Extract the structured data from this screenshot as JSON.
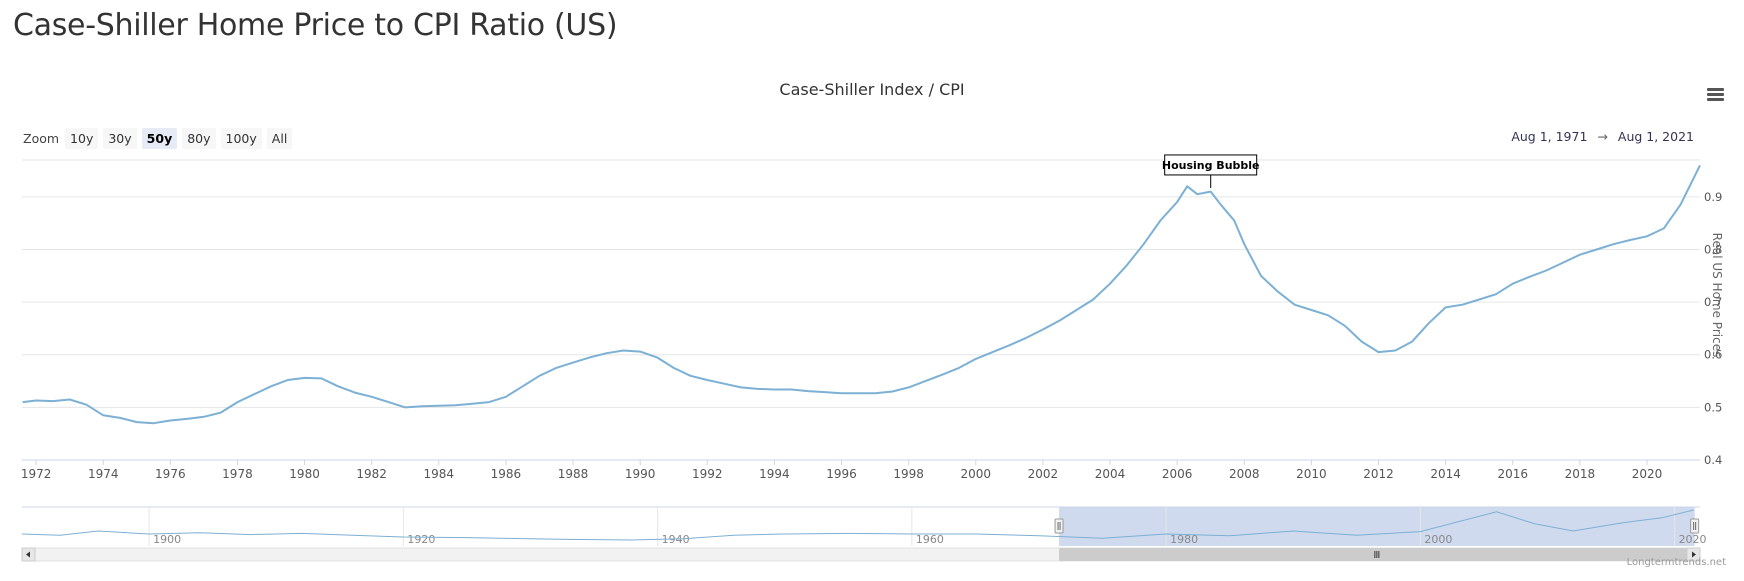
{
  "page": {
    "title": "Case-Shiller Home Price to CPI Ratio (US)",
    "credits": "Longtermtrends.net"
  },
  "toolbar": {
    "zoom_label": "Zoom",
    "zoom_buttons": [
      "10y",
      "30y",
      "50y",
      "80y",
      "100y",
      "All"
    ],
    "active_zoom": "50y",
    "range_from": "Aug 1, 1971",
    "range_arrow": "→",
    "range_to": "Aug 1, 2021",
    "menu_icon": "hamburger-menu-icon"
  },
  "colors": {
    "series": "#7cb0d4",
    "navigator_fill": "#c8d3ec",
    "grid": "#e6e6e6"
  },
  "chart_data": {
    "type": "line",
    "title": "Case-Shiller Index / CPI",
    "ylabel": "Real US Home Prices",
    "xlabel": "",
    "xlim": [
      1971.58,
      2021.58
    ],
    "ylim": [
      0.4,
      0.97
    ],
    "y_ticks": [
      "0.4",
      "0.5",
      "0.6",
      "0.7",
      "0.8",
      "0.9"
    ],
    "x_ticks": [
      "1972",
      "1974",
      "1976",
      "1978",
      "1980",
      "1982",
      "1984",
      "1986",
      "1988",
      "1990",
      "1992",
      "1994",
      "1996",
      "1998",
      "2000",
      "2002",
      "2004",
      "2006",
      "2008",
      "2010",
      "2012",
      "2014",
      "2016",
      "2018",
      "2020"
    ],
    "grid": true,
    "annotation": {
      "label": "Housing Bubble",
      "x": 2007.0,
      "y": 0.915
    },
    "series": [
      {
        "x": [
          1971.6,
          1972.0,
          1972.5,
          1973.0,
          1973.5,
          1974.0,
          1974.5,
          1975.0,
          1975.5,
          1976.0,
          1976.5,
          1977.0,
          1977.5,
          1978.0,
          1978.5,
          1979.0,
          1979.5,
          1980.0,
          1980.5,
          1981.0,
          1981.5,
          1982.0,
          1982.5,
          1983.0,
          1983.5,
          1984.0,
          1984.5,
          1985.0,
          1985.5,
          1986.0,
          1986.5,
          1987.0,
          1987.5,
          1988.0,
          1988.5,
          1989.0,
          1989.5,
          1990.0,
          1990.5,
          1991.0,
          1991.5,
          1992.0,
          1992.5,
          1993.0,
          1993.5,
          1994.0,
          1994.5,
          1995.0,
          1995.5,
          1996.0,
          1996.5,
          1997.0,
          1997.5,
          1998.0,
          1998.5,
          1999.0,
          1999.5,
          2000.0,
          2000.5,
          2001.0,
          2001.5,
          2002.0,
          2002.5,
          2003.0,
          2003.5,
          2004.0,
          2004.5,
          2005.0,
          2005.5,
          2006.0,
          2006.3,
          2006.6,
          2007.0,
          2007.3,
          2007.7,
          2008.0,
          2008.5,
          2009.0,
          2009.5,
          2010.0,
          2010.5,
          2011.0,
          2011.5,
          2012.0,
          2012.5,
          2013.0,
          2013.5,
          2014.0,
          2014.5,
          2015.0,
          2015.5,
          2016.0,
          2016.5,
          2017.0,
          2017.5,
          2018.0,
          2018.5,
          2019.0,
          2019.5,
          2020.0,
          2020.5,
          2021.0,
          2021.58
        ],
        "values": [
          0.51,
          0.513,
          0.512,
          0.515,
          0.505,
          0.485,
          0.48,
          0.472,
          0.47,
          0.475,
          0.478,
          0.482,
          0.49,
          0.51,
          0.525,
          0.54,
          0.552,
          0.556,
          0.555,
          0.54,
          0.528,
          0.52,
          0.51,
          0.5,
          0.502,
          0.503,
          0.504,
          0.507,
          0.51,
          0.52,
          0.54,
          0.56,
          0.575,
          0.585,
          0.595,
          0.603,
          0.608,
          0.606,
          0.595,
          0.575,
          0.56,
          0.552,
          0.545,
          0.538,
          0.535,
          0.534,
          0.534,
          0.531,
          0.529,
          0.527,
          0.527,
          0.527,
          0.53,
          0.538,
          0.55,
          0.562,
          0.575,
          0.592,
          0.605,
          0.618,
          0.632,
          0.648,
          0.665,
          0.685,
          0.705,
          0.735,
          0.77,
          0.81,
          0.855,
          0.89,
          0.92,
          0.905,
          0.91,
          0.885,
          0.855,
          0.81,
          0.75,
          0.72,
          0.695,
          0.685,
          0.675,
          0.655,
          0.625,
          0.605,
          0.608,
          0.625,
          0.66,
          0.69,
          0.695,
          0.705,
          0.715,
          0.735,
          0.748,
          0.76,
          0.775,
          0.79,
          0.8,
          0.81,
          0.818,
          0.825,
          0.84,
          0.885,
          0.96
        ]
      }
    ],
    "navigator": {
      "x_ticks": [
        "1900",
        "1920",
        "1940",
        "1960",
        "1980",
        "2000",
        "2020"
      ],
      "xlim": [
        1890,
        2022
      ],
      "selected": [
        1971.58,
        2021.58
      ],
      "x": [
        1890,
        1893,
        1896,
        1900,
        1904,
        1908,
        1912,
        1916,
        1920,
        1925,
        1930,
        1933,
        1938,
        1942,
        1946,
        1950,
        1955,
        1960,
        1965,
        1970,
        1975,
        1980,
        1985,
        1990,
        1995,
        2000,
        2006,
        2009,
        2012,
        2016,
        2019,
        2021.5
      ],
      "values": [
        0.55,
        0.53,
        0.6,
        0.55,
        0.57,
        0.54,
        0.56,
        0.53,
        0.5,
        0.49,
        0.47,
        0.46,
        0.45,
        0.47,
        0.53,
        0.55,
        0.56,
        0.55,
        0.55,
        0.52,
        0.48,
        0.55,
        0.52,
        0.6,
        0.53,
        0.59,
        0.92,
        0.72,
        0.6,
        0.74,
        0.82,
        0.95
      ]
    }
  }
}
